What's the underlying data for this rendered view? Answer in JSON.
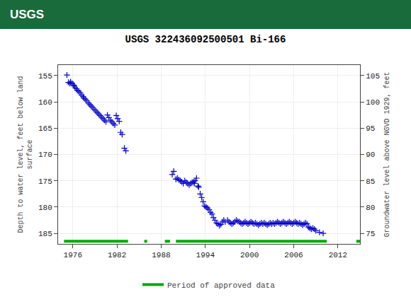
{
  "chart_data": {
    "type": "scatter",
    "title": "USGS 322436092500501 Bi-166",
    "annotations": [
      {
        "text": "USGS",
        "color": "#1a6b3c"
      }
    ],
    "ylabel": "Depth to water level, feet below land\nsurface",
    "y2label": "Groundwater level above NGVD 1929, feet",
    "xlim": [
      1974,
      2015
    ],
    "xticks": [
      1976,
      1982,
      1988,
      1994,
      2000,
      2006,
      2012
    ],
    "ylim": [
      187,
      153
    ],
    "yticks": [
      155,
      160,
      165,
      170,
      175,
      180,
      185
    ],
    "y2lim": [
      73,
      107
    ],
    "y2ticks": [
      105,
      100,
      95,
      90,
      85,
      80,
      75
    ],
    "grid": true,
    "legend": "bottom",
    "series": [
      {
        "type": "scatter",
        "marker": "+",
        "color": "#0000cc",
        "x": [
          1975.2,
          1975.4,
          1975.6,
          1975.7,
          1975.9,
          1976.1,
          1976.2,
          1976.3,
          1976.5,
          1976.6,
          1976.8,
          1977.0,
          1977.2,
          1977.4,
          1977.5,
          1977.7,
          1977.9,
          1978.1,
          1978.3,
          1978.5,
          1978.7,
          1978.9,
          1979.1,
          1979.3,
          1979.5,
          1979.7,
          1979.9,
          1980.1,
          1980.3,
          1980.5,
          1980.7,
          1980.9,
          1981.1,
          1981.3,
          1981.5,
          1981.7,
          1981.9,
          1982.1,
          1982.3,
          1982.5,
          1982.7,
          1983.0,
          1983.2,
          1989.5,
          1989.7,
          1990.0,
          1990.2,
          1990.4,
          1990.6,
          1990.8,
          1991.0,
          1991.2,
          1991.4,
          1991.6,
          1991.8,
          1992.0,
          1992.2,
          1992.4,
          1992.5,
          1992.6,
          1992.8,
          1993.0,
          1993.1,
          1993.3,
          1993.5,
          1993.7,
          1993.9,
          1994.1,
          1994.3,
          1994.5,
          1994.7,
          1994.9,
          1995.1,
          1995.3,
          1995.5,
          1995.7,
          1995.9,
          1996.1,
          1996.3,
          1996.5,
          1996.7,
          1997.0,
          1997.2,
          1997.4,
          1997.6,
          1997.8,
          1998.0,
          1998.2,
          1998.4,
          1998.6,
          1998.8,
          1999.0,
          1999.2,
          1999.4,
          1999.6,
          1999.8,
          2000.0,
          2000.2,
          2000.4,
          2000.6,
          2000.8,
          2001.0,
          2001.2,
          2001.4,
          2001.6,
          2001.8,
          2002.0,
          2002.2,
          2002.4,
          2002.6,
          2002.8,
          2003.0,
          2003.2,
          2003.4,
          2003.6,
          2003.8,
          2004.0,
          2004.2,
          2004.4,
          2004.6,
          2004.8,
          2005.0,
          2005.2,
          2005.4,
          2005.6,
          2005.8,
          2006.0,
          2006.2,
          2006.4,
          2006.6,
          2006.8,
          2007.0,
          2007.2,
          2007.4,
          2007.6,
          2007.8,
          2008.0,
          2008.2,
          2008.4,
          2008.6,
          2008.8,
          2009.0,
          2009.5,
          2010.0
        ],
        "values": [
          154.9,
          156.3,
          156.5,
          156.2,
          156.5,
          156.8,
          157.0,
          157.3,
          157.5,
          157.8,
          158.0,
          158.3,
          158.7,
          159.0,
          159.3,
          159.5,
          159.8,
          160.2,
          160.5,
          160.8,
          161.1,
          161.4,
          161.7,
          162.0,
          162.3,
          162.6,
          162.9,
          163.2,
          163.5,
          163.8,
          162.5,
          163.0,
          163.5,
          163.8,
          164.1,
          164.4,
          162.6,
          163.2,
          163.7,
          165.8,
          166.2,
          168.8,
          169.3,
          173.8,
          173.2,
          174.7,
          174.5,
          174.8,
          175.0,
          175.2,
          175.5,
          175.0,
          175.3,
          175.5,
          175.8,
          175.5,
          175.3,
          175.2,
          175.5,
          175.0,
          174.5,
          176.0,
          176.2,
          177.5,
          178.2,
          179.0,
          179.8,
          180.0,
          180.2,
          180.5,
          181.0,
          181.3,
          182.0,
          182.5,
          183.0,
          183.2,
          183.5,
          183.3,
          182.8,
          182.5,
          182.8,
          182.5,
          182.8,
          183.0,
          183.2,
          183.0,
          182.8,
          182.5,
          182.7,
          182.8,
          183.0,
          183.2,
          183.0,
          182.8,
          183.0,
          183.2,
          183.0,
          182.8,
          183.0,
          183.2,
          183.0,
          183.2,
          183.4,
          183.2,
          183.0,
          183.2,
          183.0,
          183.2,
          183.4,
          183.2,
          183.0,
          183.2,
          183.0,
          183.2,
          183.0,
          182.8,
          183.0,
          183.2,
          183.0,
          182.8,
          183.0,
          183.2,
          183.0,
          182.8,
          183.0,
          183.2,
          183.0,
          182.8,
          183.0,
          183.2,
          183.0,
          183.2,
          183.4,
          183.2,
          183.0,
          183.2,
          183.8,
          184.0,
          184.2,
          184.0,
          184.2,
          184.5,
          184.8,
          185.0
        ]
      },
      {
        "name": "Period of approved data",
        "type": "range_bar",
        "color": "#00aa00",
        "y": 186.5,
        "periods": [
          [
            1974.8,
            1983.5
          ],
          [
            1985.7,
            1986.1
          ],
          [
            1988.5,
            1989.2
          ],
          [
            1990.0,
            2010.5
          ],
          [
            2014.5,
            2015.0
          ]
        ]
      }
    ]
  }
}
